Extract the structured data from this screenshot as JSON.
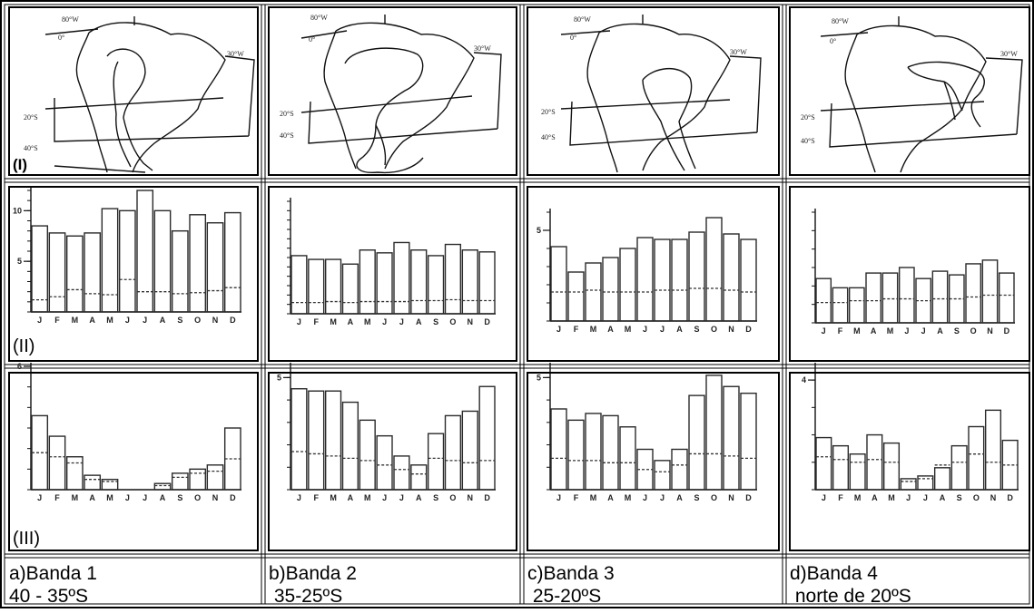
{
  "row_labels": {
    "maps": "(I)",
    "rain": "(II)",
    "cold": "(III)"
  },
  "columns": [
    {
      "caption_line1": "a)Banda 1",
      "caption_line2": "40 - 35ºS"
    },
    {
      "caption_line1": "b)Banda 2",
      "caption_line2": " 35-25ºS"
    },
    {
      "caption_line1": "c)Banda 3",
      "caption_line2": " 25-20ºS"
    },
    {
      "caption_line1": "d)Banda 4",
      "caption_line2": " norte de 20ºS"
    }
  ],
  "map_labels": {
    "lon_80": "80°W",
    "lon_0": "0°",
    "lon_30": "30°W",
    "lat_20": "20°S",
    "lat_40": "40°S"
  },
  "colors": {
    "line": "#000000",
    "bar_stroke": "#2a2a2a",
    "dashed": "#333333",
    "background": "#ffffff"
  },
  "chart_data": [
    {
      "type": "bar",
      "row": "II",
      "panel": "a",
      "categories": [
        "J",
        "F",
        "M",
        "A",
        "M",
        "J",
        "J",
        "A",
        "S",
        "O",
        "N",
        "D"
      ],
      "ylim": [
        0,
        12
      ],
      "yticks": [
        "5",
        "10"
      ],
      "ytick_values": [
        5,
        10
      ],
      "series": [
        {
          "values": [
            8.5,
            7.8,
            7.5,
            7.8,
            10.2,
            10.0,
            12.0,
            10.0,
            8.0,
            9.6,
            8.8,
            9.8
          ]
        },
        {
          "style": "dashed",
          "values": [
            1.2,
            1.5,
            2.2,
            1.8,
            1.7,
            3.2,
            2.0,
            2.0,
            1.8,
            1.9,
            2.1,
            2.4
          ]
        }
      ]
    },
    {
      "type": "bar",
      "row": "II",
      "panel": "b",
      "categories": [
        "J",
        "F",
        "M",
        "A",
        "M",
        "J",
        "J",
        "A",
        "S",
        "O",
        "N",
        "D"
      ],
      "ylim": [
        0,
        12
      ],
      "yticks": [],
      "ytick_values": [],
      "series": [
        {
          "values": [
            6.2,
            5.8,
            5.8,
            5.3,
            6.8,
            6.5,
            7.6,
            6.8,
            6.2,
            7.4,
            6.8,
            6.6
          ]
        },
        {
          "style": "dashed",
          "values": [
            1.2,
            1.2,
            1.3,
            1.2,
            1.3,
            1.3,
            1.3,
            1.4,
            1.4,
            1.5,
            1.4,
            1.4
          ]
        }
      ]
    },
    {
      "type": "bar",
      "row": "II",
      "panel": "c",
      "categories": [
        "J",
        "F",
        "M",
        "A",
        "M",
        "J",
        "J",
        "A",
        "S",
        "O",
        "N",
        "D"
      ],
      "ylim": [
        0,
        6
      ],
      "yticks": [
        "5"
      ],
      "ytick_values": [
        5
      ],
      "series": [
        {
          "values": [
            4.1,
            2.7,
            3.2,
            3.5,
            4.0,
            4.6,
            4.5,
            4.5,
            4.9,
            5.7,
            4.8,
            4.5
          ]
        },
        {
          "style": "dashed",
          "values": [
            1.6,
            1.6,
            1.7,
            1.6,
            1.6,
            1.6,
            1.7,
            1.7,
            1.8,
            1.8,
            1.7,
            1.6
          ]
        }
      ]
    },
    {
      "type": "bar",
      "row": "II",
      "panel": "d",
      "categories": [
        "J",
        "F",
        "M",
        "A",
        "M",
        "J",
        "J",
        "A",
        "S",
        "O",
        "N",
        "D"
      ],
      "ylim": [
        0,
        6
      ],
      "yticks": [],
      "ytick_values": [],
      "series": [
        {
          "values": [
            2.4,
            1.9,
            1.9,
            2.7,
            2.7,
            3.0,
            2.4,
            2.8,
            2.6,
            3.2,
            3.4,
            2.7
          ]
        },
        {
          "style": "dashed",
          "values": [
            1.1,
            1.1,
            1.2,
            1.2,
            1.3,
            1.3,
            1.2,
            1.3,
            1.3,
            1.4,
            1.5,
            1.5
          ]
        }
      ]
    },
    {
      "type": "bar",
      "row": "III",
      "panel": "a",
      "categories": [
        "J",
        "F",
        "M",
        "A",
        "M",
        "J",
        "J",
        "A",
        "S",
        "O",
        "N",
        "D"
      ],
      "ylim": [
        0,
        6
      ],
      "yticks": [
        "6"
      ],
      "ytick_values": [
        6
      ],
      "series": [
        {
          "values": [
            3.6,
            2.6,
            1.6,
            0.7,
            0.5,
            0,
            0,
            0.3,
            0.8,
            1.0,
            1.2,
            3.0
          ]
        },
        {
          "style": "dashed",
          "values": [
            1.8,
            1.6,
            1.3,
            0.5,
            0.4,
            0,
            0,
            0.2,
            0.6,
            0.8,
            0.9,
            1.5
          ]
        }
      ]
    },
    {
      "type": "bar",
      "row": "III",
      "panel": "b",
      "categories": [
        "J",
        "F",
        "M",
        "A",
        "M",
        "J",
        "J",
        "A",
        "S",
        "O",
        "N",
        "D"
      ],
      "ylim": [
        0,
        5.5
      ],
      "yticks": [
        "5"
      ],
      "ytick_values": [
        5
      ],
      "series": [
        {
          "values": [
            4.5,
            4.4,
            4.4,
            3.9,
            3.1,
            2.4,
            1.5,
            1.1,
            2.5,
            3.3,
            3.5,
            4.6
          ]
        },
        {
          "style": "dashed",
          "values": [
            1.7,
            1.6,
            1.5,
            1.4,
            1.3,
            1.1,
            0.9,
            0.7,
            1.4,
            1.3,
            1.2,
            1.3
          ]
        }
      ]
    },
    {
      "type": "bar",
      "row": "III",
      "panel": "c",
      "categories": [
        "J",
        "F",
        "M",
        "A",
        "M",
        "J",
        "J",
        "A",
        "S",
        "O",
        "N",
        "D"
      ],
      "ylim": [
        0,
        5.5
      ],
      "yticks": [
        "5"
      ],
      "ytick_values": [
        5
      ],
      "series": [
        {
          "values": [
            3.6,
            3.1,
            3.4,
            3.3,
            2.8,
            1.8,
            1.3,
            1.8,
            4.2,
            5.1,
            4.6,
            4.3
          ]
        },
        {
          "style": "dashed",
          "values": [
            1.4,
            1.3,
            1.3,
            1.2,
            1.2,
            0.9,
            0.8,
            1.1,
            1.6,
            1.6,
            1.5,
            1.4
          ]
        }
      ]
    },
    {
      "type": "bar",
      "row": "III",
      "panel": "d",
      "categories": [
        "J",
        "F",
        "M",
        "A",
        "M",
        "J",
        "J",
        "A",
        "S",
        "O",
        "N",
        "D"
      ],
      "ylim": [
        0,
        4.5
      ],
      "yticks": [
        "4"
      ],
      "ytick_values": [
        4
      ],
      "series": [
        {
          "values": [
            1.9,
            1.6,
            1.3,
            2.0,
            1.7,
            0.4,
            0.5,
            0.8,
            1.6,
            2.3,
            2.9,
            1.8
          ]
        },
        {
          "style": "dashed",
          "values": [
            1.2,
            1.1,
            1.0,
            1.1,
            1.0,
            0.3,
            0.4,
            0.9,
            1.0,
            1.3,
            1.0,
            0.9
          ]
        }
      ]
    }
  ]
}
